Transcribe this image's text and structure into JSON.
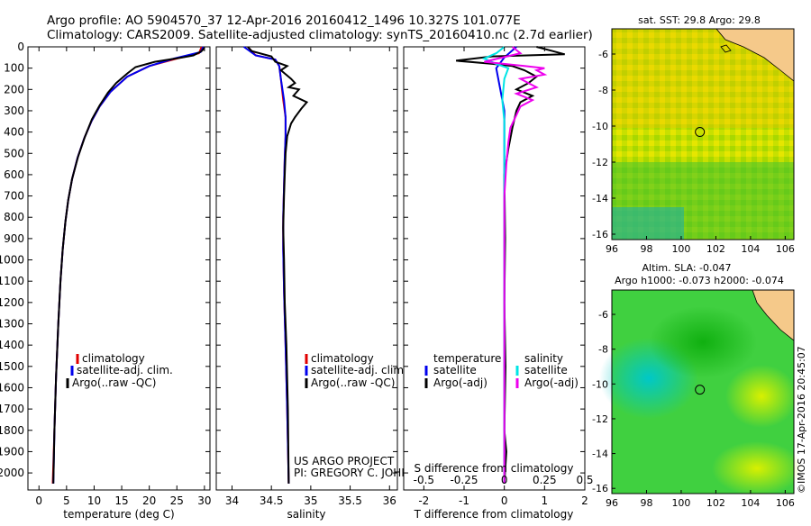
{
  "header": {
    "line1": "Argo profile: AO 5904570_37 12-Apr-2016 20160412_1496 10.327S 101.077E",
    "line2": "Climatology: CARS2009. Satellite-adjusted climatology: synTS_20160410.nc (2.7d earlier)"
  },
  "colors": {
    "climatology": "#e00000",
    "satellite": "#0000ee",
    "argo": "#000000",
    "sal_satellite": "#00e5e5",
    "sal_argo": "#ee00ee"
  },
  "chart_data": [
    {
      "type": "line",
      "name": "temperature-profile",
      "xlabel": "temperature (deg C)",
      "ylabel": "",
      "xlim": [
        -2,
        31
      ],
      "ylim": [
        2080,
        0
      ],
      "xticks": [
        0,
        5,
        10,
        15,
        20,
        25,
        30
      ],
      "yticks": [
        0,
        100,
        200,
        300,
        400,
        500,
        600,
        700,
        800,
        900,
        1000,
        1100,
        1200,
        1300,
        1400,
        1500,
        1600,
        1700,
        1800,
        1900,
        2000
      ],
      "legend": [
        "climatology",
        "satellite-adj. clim.",
        "Argo(..raw -QC)"
      ],
      "series": [
        {
          "name": "climatology",
          "color": "#e00000",
          "points": [
            [
              29.5,
              0
            ],
            [
              29,
              30
            ],
            [
              25,
              55
            ],
            [
              20,
              90
            ],
            [
              16,
              140
            ],
            [
              13,
              210
            ],
            [
              11,
              280
            ],
            [
              9.5,
              350
            ],
            [
              8.2,
              430
            ],
            [
              7,
              520
            ],
            [
              6,
              620
            ],
            [
              5.3,
              720
            ],
            [
              4.8,
              820
            ],
            [
              4.3,
              950
            ],
            [
              3.9,
              1100
            ],
            [
              3.5,
              1300
            ],
            [
              3.1,
              1550
            ],
            [
              2.8,
              1800
            ],
            [
              2.5,
              2050
            ]
          ]
        },
        {
          "name": "satellite-adj. clim.",
          "color": "#0000ee",
          "points": [
            [
              29.8,
              0
            ],
            [
              29.3,
              25
            ],
            [
              24.5,
              55
            ],
            [
              20,
              90
            ],
            [
              16,
              140
            ],
            [
              13,
              210
            ],
            [
              11,
              280
            ],
            [
              9.5,
              350
            ],
            [
              8.2,
              430
            ],
            [
              7,
              520
            ],
            [
              6,
              620
            ],
            [
              5.3,
              720
            ],
            [
              4.8,
              820
            ],
            [
              4.3,
              950
            ],
            [
              3.9,
              1100
            ],
            [
              3.5,
              1300
            ],
            [
              3.1,
              1550
            ],
            [
              2.8,
              1800
            ],
            [
              2.6,
              2050
            ]
          ]
        },
        {
          "name": "Argo(..raw -QC)",
          "color": "#000000",
          "points": [
            [
              30,
              5
            ],
            [
              29.5,
              20
            ],
            [
              28,
              40
            ],
            [
              26,
              50
            ],
            [
              21,
              70
            ],
            [
              17.5,
              95
            ],
            [
              16,
              125
            ],
            [
              14,
              170
            ],
            [
              12.5,
              215
            ],
            [
              11,
              275
            ],
            [
              9.6,
              340
            ],
            [
              8.3,
              425
            ],
            [
              7.1,
              515
            ],
            [
              6,
              620
            ],
            [
              5.3,
              720
            ],
            [
              4.8,
              820
            ],
            [
              4.3,
              950
            ],
            [
              3.9,
              1100
            ],
            [
              3.5,
              1300
            ],
            [
              3.1,
              1550
            ],
            [
              2.8,
              1800
            ],
            [
              2.6,
              2050
            ]
          ]
        }
      ]
    },
    {
      "type": "line",
      "name": "salinity-profile",
      "xlabel": "salinity",
      "xlim": [
        33.8,
        36.1
      ],
      "ylim": [
        2080,
        0
      ],
      "xticks": [
        34,
        34.5,
        35,
        35.5,
        36
      ],
      "legend": [
        "climatology",
        "satellite-adj. clim.",
        "Argo(..raw -QC)"
      ],
      "series": [
        {
          "name": "climatology",
          "color": "#e00000",
          "points": [
            [
              34.2,
              0
            ],
            [
              34.3,
              40
            ],
            [
              34.55,
              60
            ],
            [
              34.6,
              90
            ],
            [
              34.62,
              150
            ],
            [
              34.65,
              250
            ],
            [
              34.68,
              330
            ],
            [
              34.68,
              420
            ],
            [
              34.67,
              520
            ],
            [
              34.66,
              650
            ],
            [
              34.65,
              800
            ],
            [
              34.65,
              950
            ],
            [
              34.66,
              1150
            ],
            [
              34.68,
              1400
            ],
            [
              34.7,
              1700
            ],
            [
              34.72,
              2050
            ]
          ]
        },
        {
          "name": "satellite-adj. clim.",
          "color": "#0000ee",
          "points": [
            [
              34.15,
              0
            ],
            [
              34.3,
              40
            ],
            [
              34.55,
              60
            ],
            [
              34.6,
              90
            ],
            [
              34.62,
              150
            ],
            [
              34.66,
              250
            ],
            [
              34.68,
              330
            ],
            [
              34.68,
              420
            ],
            [
              34.67,
              520
            ],
            [
              34.66,
              650
            ],
            [
              34.65,
              800
            ],
            [
              34.65,
              950
            ],
            [
              34.66,
              1150
            ],
            [
              34.68,
              1400
            ],
            [
              34.7,
              1700
            ],
            [
              34.72,
              2050
            ]
          ]
        },
        {
          "name": "Argo(..raw -QC)",
          "color": "#000000",
          "points": [
            [
              34.2,
              0
            ],
            [
              34.25,
              20
            ],
            [
              34.5,
              45
            ],
            [
              34.55,
              70
            ],
            [
              34.7,
              90
            ],
            [
              34.62,
              110
            ],
            [
              34.75,
              150
            ],
            [
              34.8,
              170
            ],
            [
              34.72,
              190
            ],
            [
              34.85,
              200
            ],
            [
              34.78,
              230
            ],
            [
              34.95,
              260
            ],
            [
              34.88,
              290
            ],
            [
              34.8,
              330
            ],
            [
              34.75,
              360
            ],
            [
              34.7,
              420
            ],
            [
              34.68,
              500
            ],
            [
              34.67,
              600
            ],
            [
              34.66,
              700
            ],
            [
              34.65,
              850
            ],
            [
              34.66,
              1000
            ],
            [
              34.67,
              1200
            ],
            [
              34.69,
              1400
            ],
            [
              34.71,
              1700
            ],
            [
              34.72,
              2050
            ]
          ]
        }
      ]
    },
    {
      "type": "line",
      "name": "difference-profile",
      "xlabel": "T difference from climatology",
      "xlabel2": "S difference from climatology",
      "xlim": [
        -2.5,
        2
      ],
      "ylim": [
        2080,
        0
      ],
      "xticks": [
        -2,
        -1,
        0,
        1,
        2
      ],
      "xticks2": [
        "-0.5",
        "-0.25",
        "0",
        "0.25",
        "0.5"
      ],
      "legend_titles": [
        "temperature",
        "salinity"
      ],
      "legend": [
        [
          "satellite",
          "Argo(-adj)"
        ],
        [
          "satellite",
          "Argo(-adj)"
        ]
      ],
      "series": [
        {
          "name": "T satellite",
          "color": "#0000ee",
          "points": [
            [
              0.3,
              0
            ],
            [
              0,
              50
            ],
            [
              -0.2,
              100
            ],
            [
              -0.1,
              200
            ],
            [
              0,
              300
            ],
            [
              0,
              600
            ],
            [
              0,
              1000
            ],
            [
              0,
              1500
            ],
            [
              0,
              2050
            ]
          ]
        },
        {
          "name": "T Argo(-adj)",
          "color": "#000000",
          "points": [
            [
              0.8,
              0
            ],
            [
              1.2,
              20
            ],
            [
              1.5,
              35
            ],
            [
              -0.3,
              45
            ],
            [
              -1.2,
              65
            ],
            [
              -0.3,
              80
            ],
            [
              0.2,
              90
            ],
            [
              0.5,
              110
            ],
            [
              0.8,
              140
            ],
            [
              0.6,
              170
            ],
            [
              0.3,
              200
            ],
            [
              0.7,
              230
            ],
            [
              0.4,
              260
            ],
            [
              0.3,
              300
            ],
            [
              0.2,
              380
            ],
            [
              0.1,
              480
            ],
            [
              0,
              600
            ],
            [
              0.02,
              900
            ],
            [
              0,
              1200
            ],
            [
              0.03,
              1500
            ],
            [
              0,
              1800
            ],
            [
              0.05,
              1900
            ],
            [
              0,
              2050
            ]
          ]
        },
        {
          "name": "S satellite",
          "color": "#00e5e5",
          "points": [
            [
              0,
              0
            ],
            [
              -0.2,
              30
            ],
            [
              -0.5,
              55
            ],
            [
              -0.2,
              80
            ],
            [
              0.1,
              100
            ],
            [
              0,
              150
            ],
            [
              -0.05,
              250
            ],
            [
              0,
              350
            ],
            [
              0,
              600
            ],
            [
              0,
              1000
            ],
            [
              0,
              1500
            ],
            [
              0,
              2050
            ]
          ]
        },
        {
          "name": "S Argo(-adj)",
          "color": "#ee00ee",
          "points": [
            [
              0.2,
              0
            ],
            [
              0.4,
              30
            ],
            [
              -0.5,
              70
            ],
            [
              0.5,
              90
            ],
            [
              1.0,
              100
            ],
            [
              0.8,
              110
            ],
            [
              1.0,
              130
            ],
            [
              0.4,
              150
            ],
            [
              0.6,
              170
            ],
            [
              0.8,
              190
            ],
            [
              0.3,
              220
            ],
            [
              0.7,
              250
            ],
            [
              0.4,
              280
            ],
            [
              0.3,
              320
            ],
            [
              0.15,
              380
            ],
            [
              0.1,
              450
            ],
            [
              0.05,
              550
            ],
            [
              0,
              700
            ],
            [
              0,
              1000
            ],
            [
              0,
              1500
            ],
            [
              0,
              2050
            ]
          ]
        }
      ]
    },
    {
      "type": "heatmap",
      "name": "sst-map",
      "title": "sat. SST: 29.8  Argo: 29.8",
      "xlim": [
        96,
        106.5
      ],
      "ylim": [
        -16.3,
        -4.6
      ],
      "xticks": [
        96,
        98,
        100,
        102,
        104,
        106
      ],
      "yticks": [
        -6,
        -8,
        -10,
        -12,
        -14,
        -16
      ],
      "marker": [
        101.077,
        -10.327
      ]
    },
    {
      "type": "heatmap",
      "name": "sla-map",
      "title": "Altim. SLA: -0.047",
      "subtitle": "Argo h1000: -0.073 h2000: -0.074",
      "xlim": [
        96,
        106.5
      ],
      "ylim": [
        -16.3,
        -4.6
      ],
      "xticks": [
        96,
        98,
        100,
        102,
        104,
        106
      ],
      "yticks": [
        -6,
        -8,
        -10,
        -12,
        -14,
        -16
      ],
      "marker": [
        101.077,
        -10.327
      ]
    }
  ],
  "annotations": {
    "project": "US ARGO PROJECT",
    "pi": "PI: GREGORY C. JOHNSON",
    "credit": "©IMOS 17-Apr-2016 20:45:07"
  }
}
